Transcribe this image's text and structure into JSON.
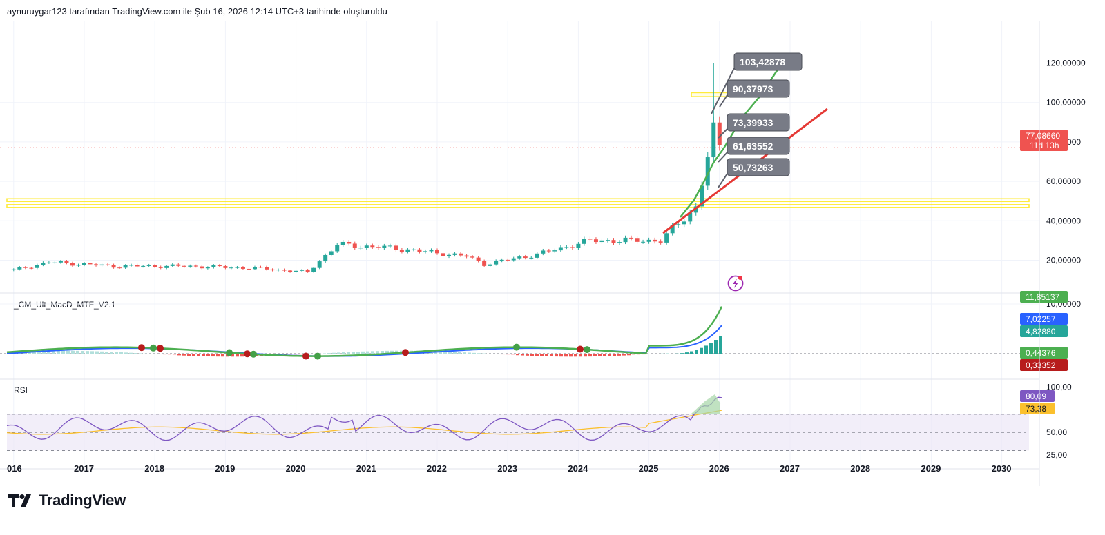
{
  "header": {
    "text": "aynuruygar123 tarafından TradingView.com ile Şub 16, 2026 12:14 UTC+3 tarihinde oluşturuldu"
  },
  "brand": {
    "name": "TradingView",
    "icon": "tradingview-logo-icon"
  },
  "colors": {
    "up": "#26a69a",
    "down": "#ef5350",
    "green_line": "#4caf50",
    "red_line": "#e53935",
    "yellow": "#ffeb3b",
    "callout": "#787b86",
    "rsi": "#7e57c2",
    "rsi_ma": "#fbc02d",
    "macd_blue": "#2962ff"
  },
  "chart_data": [
    {
      "type": "candlestick",
      "title": "",
      "x_axis": {
        "labels": [
          "016",
          "2017",
          "2018",
          "2019",
          "2020",
          "2021",
          "2022",
          "2023",
          "2024",
          "2025",
          "2026",
          "2027",
          "2028",
          "2029",
          "2030"
        ]
      },
      "y_axis": {
        "ticks": [
          "120,00000",
          "100,00000",
          "80,00000",
          "60,00000",
          "40,00000",
          "20,00000"
        ],
        "ylim": [
          0,
          126
        ]
      },
      "grid": true,
      "last_price": {
        "value": "77,08660",
        "countdown": "11d 13h"
      },
      "callouts": [
        "103,42878",
        "90,37973",
        "73,39933",
        "61,63552",
        "50,73263"
      ],
      "key_points": [
        {
          "date": "2016-01",
          "close": 15
        },
        {
          "date": "2016-07",
          "close": 19
        },
        {
          "date": "2017-06",
          "close": 17
        },
        {
          "date": "2018-06",
          "close": 17
        },
        {
          "date": "2019-06",
          "close": 16
        },
        {
          "date": "2020-03",
          "close": 14
        },
        {
          "date": "2020-08",
          "close": 28
        },
        {
          "date": "2021-06",
          "close": 26
        },
        {
          "date": "2022-06",
          "close": 22
        },
        {
          "date": "2022-09",
          "close": 18
        },
        {
          "date": "2023-06",
          "close": 23
        },
        {
          "date": "2024-03",
          "close": 30
        },
        {
          "date": "2025-03",
          "close": 30
        },
        {
          "date": "2025-09",
          "close": 47
        },
        {
          "date": "2025-11",
          "close": 72
        },
        {
          "date": "2025-12",
          "close": 85,
          "high": 120
        },
        {
          "date": "2026-01",
          "close": 77.0866
        }
      ],
      "support_zones": [
        47.5,
        50.5
      ],
      "resistance_zone": [
        103,
        105
      ]
    },
    {
      "type": "line",
      "title": "_CM_Ult_MacD_MTF_V2.1",
      "y_axis": {
        "ticks": [
          "10,00000"
        ]
      },
      "values": {
        "macd": "11,85137",
        "signal": "7,02257",
        "histogram": "4,82880",
        "v1": "0,44376",
        "v2": "0,33352"
      }
    },
    {
      "type": "line",
      "title": "RSI",
      "y_axis": {
        "ticks": [
          "100,00",
          "50,00",
          "25,00"
        ],
        "ylim": [
          22,
          100
        ]
      },
      "values": {
        "rsi": "80,09",
        "rsi_ma": "73,38"
      }
    }
  ]
}
